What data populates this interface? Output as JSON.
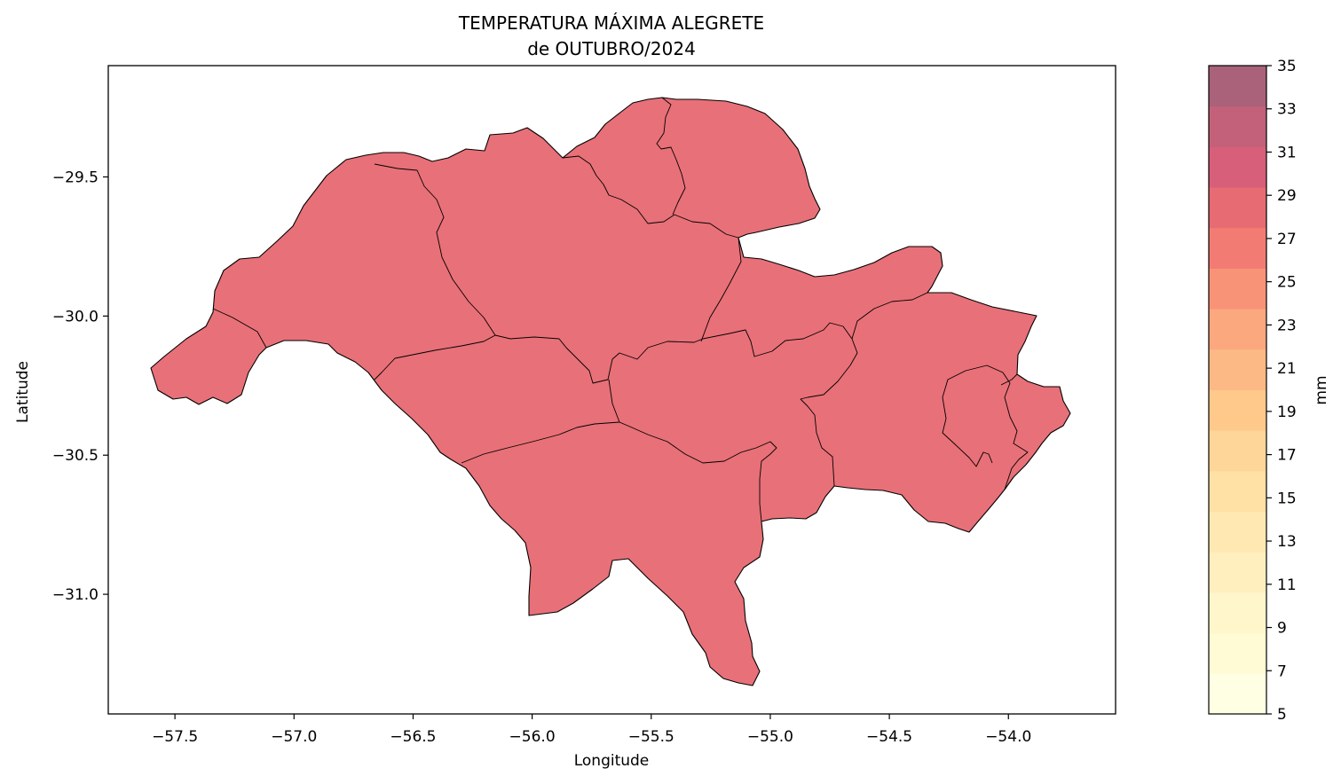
{
  "figure": {
    "title_line1": "TEMPERATURA MÁXIMA ALEGRETE",
    "title_line2": "de OUTUBRO/2024"
  },
  "chart_data": {
    "type": "choropleth-map",
    "xlabel": "Longitude",
    "ylabel": "Latitude",
    "xlim": [
      -57.78,
      -53.55
    ],
    "ylim": [
      -31.43,
      -29.1
    ],
    "xticks": [
      {
        "value": -57.5,
        "label": "−57.5"
      },
      {
        "value": -57.0,
        "label": "−57.0"
      },
      {
        "value": -56.5,
        "label": "−56.5"
      },
      {
        "value": -56.0,
        "label": "−56.0"
      },
      {
        "value": -55.5,
        "label": "−55.5"
      },
      {
        "value": -55.0,
        "label": "−55.0"
      },
      {
        "value": -54.5,
        "label": "−54.5"
      },
      {
        "value": -54.0,
        "label": "−54.0"
      }
    ],
    "yticks": [
      {
        "value": -29.5,
        "label": "−29.5"
      },
      {
        "value": -30.0,
        "label": "−30.0"
      },
      {
        "value": -30.5,
        "label": "−30.5"
      },
      {
        "value": -31.0,
        "label": "−31.0"
      }
    ],
    "region_fill": "#e87078",
    "region_value_band": [
      27,
      29
    ],
    "colorbar": {
      "label": "mm",
      "min": 5,
      "max": 35,
      "tick_labels": [
        "5",
        "7",
        "9",
        "11",
        "13",
        "15",
        "17",
        "19",
        "21",
        "23",
        "25",
        "27",
        "29",
        "31",
        "33",
        "35"
      ],
      "band_colors": [
        "#ffffe3",
        "#fffbd5",
        "#fff6cb",
        "#ffefbf",
        "#ffe8b2",
        "#ffe0a5",
        "#fed699",
        "#fec98b",
        "#fdb985",
        "#fca87f",
        "#f99378",
        "#f27c74",
        "#e76b72",
        "#d75f79",
        "#c4617a",
        "#a9627a"
      ]
    }
  }
}
